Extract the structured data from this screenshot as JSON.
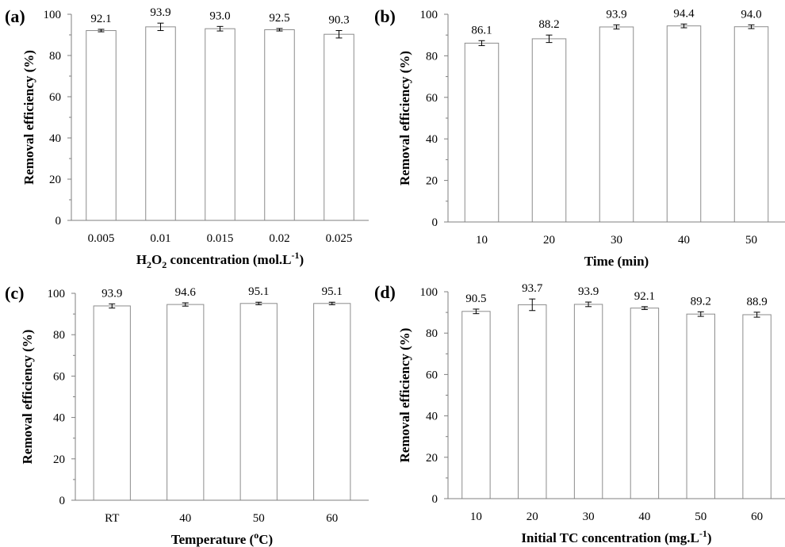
{
  "chart_data": [
    {
      "panel_label": "(a)",
      "type": "bar",
      "categories": [
        "0.005",
        "0.01",
        "0.015",
        "0.02",
        "0.025"
      ],
      "values": [
        92.1,
        93.9,
        93.0,
        92.5,
        90.3
      ],
      "value_labels": [
        "92.1",
        "93.9",
        "93.0",
        "92.5",
        "90.3"
      ],
      "error": [
        0.6,
        1.8,
        1.1,
        0.6,
        1.8
      ],
      "ylabel": "Removal efficiency (%)",
      "xlabel_parts": [
        {
          "t": "H"
        },
        {
          "t": "2",
          "sub": true
        },
        {
          "t": "O"
        },
        {
          "t": "2",
          "sub": true
        },
        {
          "t": " concentration (mol.L"
        },
        {
          "t": "-1",
          "sup": true
        },
        {
          "t": ")"
        }
      ],
      "ylim": [
        0,
        100
      ],
      "yticks": [
        0,
        20,
        40,
        60,
        80,
        100
      ],
      "grid": false
    },
    {
      "panel_label": "(b)",
      "type": "bar",
      "categories": [
        "10",
        "20",
        "30",
        "40",
        "50"
      ],
      "values": [
        86.1,
        88.2,
        93.9,
        94.4,
        94.0
      ],
      "value_labels": [
        "86.1",
        "88.2",
        "93.9",
        "94.4",
        "94.0"
      ],
      "error": [
        1.2,
        1.8,
        1.0,
        0.9,
        0.9
      ],
      "ylabel": "Removal efficiency (%)",
      "xlabel_parts": [
        {
          "t": "Time (min)"
        }
      ],
      "ylim": [
        0,
        100
      ],
      "yticks": [
        0,
        20,
        40,
        60,
        80,
        100
      ],
      "grid": false
    },
    {
      "panel_label": "(c)",
      "type": "bar",
      "categories": [
        "RT",
        "40",
        "50",
        "60"
      ],
      "values": [
        93.9,
        94.6,
        95.1,
        95.1
      ],
      "value_labels": [
        "93.9",
        "94.6",
        "95.1",
        "95.1"
      ],
      "error": [
        1.0,
        0.8,
        0.6,
        0.6
      ],
      "ylabel": "Removal efficiency (%)",
      "xlabel_parts": [
        {
          "t": "Temperature ("
        },
        {
          "t": "o",
          "sup": true
        },
        {
          "t": "C)"
        }
      ],
      "ylim": [
        0,
        100
      ],
      "yticks": [
        0,
        20,
        40,
        60,
        80,
        100
      ],
      "grid": false
    },
    {
      "panel_label": "(d)",
      "type": "bar",
      "categories": [
        "10",
        "20",
        "30",
        "40",
        "50",
        "60"
      ],
      "values": [
        90.5,
        93.7,
        93.9,
        92.1,
        89.2,
        88.9
      ],
      "value_labels": [
        "90.5",
        "93.7",
        "93.9",
        "92.1",
        "89.2",
        "88.9"
      ],
      "error": [
        1.1,
        2.8,
        1.1,
        0.7,
        1.1,
        1.2
      ],
      "ylabel": "Removal efficiency (%)",
      "xlabel_parts": [
        {
          "t": "Initial TC concentration (mg.L"
        },
        {
          "t": "-1",
          "sup": true
        },
        {
          "t": ")"
        }
      ],
      "ylim": [
        0,
        100
      ],
      "yticks": [
        0,
        20,
        40,
        60,
        80,
        100
      ],
      "grid": false
    }
  ],
  "colors": {
    "bar_fill": "#ffffff",
    "bar_stroke": "#8c8c8c",
    "axis": "#7f7f7f",
    "text": "#000000"
  }
}
